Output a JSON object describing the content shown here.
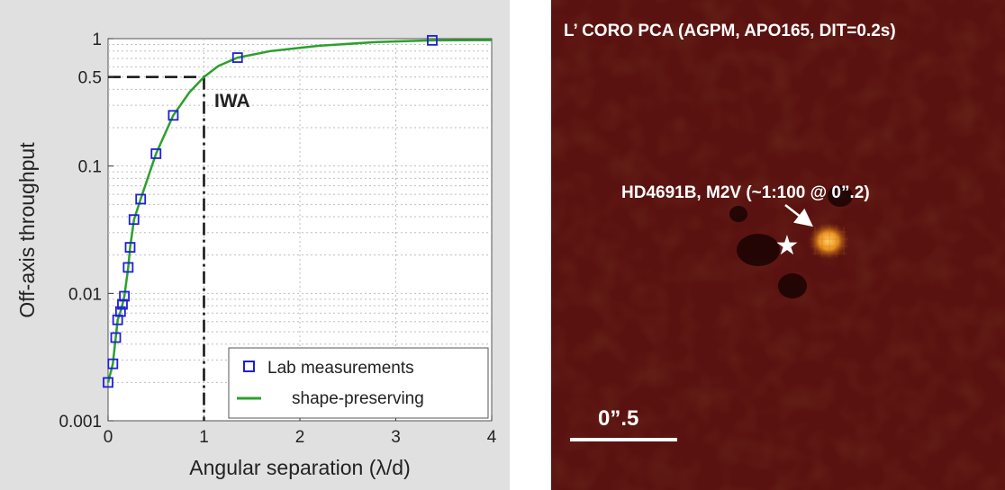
{
  "colors": {
    "panel_bg": "#e0e0e0",
    "plot_bg": "#ffffff",
    "grid": "#bdbdbd",
    "curve": "#2ca02c",
    "marker": "#1f1fd6",
    "image_bg": "#5a1210",
    "companion": "#f0a020",
    "annotation_text": "#ffffff"
  },
  "chart_data": {
    "type": "scatter",
    "title": "",
    "xlabel": "Angular separation (λ/d)",
    "ylabel": "Off-axis throughput",
    "xlim": [
      0,
      4
    ],
    "ylim": [
      0.001,
      1
    ],
    "yscale": "log",
    "grid": true,
    "legend_position": "bottom-right",
    "x_ticks": [
      {
        "value": 0,
        "label": "0"
      },
      {
        "value": 1,
        "label": "1"
      },
      {
        "value": 2,
        "label": "2"
      },
      {
        "value": 3,
        "label": "3"
      },
      {
        "value": 4,
        "label": "4"
      }
    ],
    "y_ticks": [
      {
        "value": 0.001,
        "label": "0.001"
      },
      {
        "value": 0.01,
        "label": "0.01"
      },
      {
        "value": 0.1,
        "label": "0.1"
      },
      {
        "value": 0.5,
        "label": "0.5"
      },
      {
        "value": 1,
        "label": "1"
      }
    ],
    "series": [
      {
        "name": "Lab measurements",
        "kind": "markers",
        "marker": "open-square",
        "color": "#1f1fd6",
        "x": [
          0.0,
          0.05,
          0.08,
          0.1,
          0.13,
          0.15,
          0.17,
          0.21,
          0.23,
          0.27,
          0.34,
          0.5,
          0.68,
          1.35,
          3.38
        ],
        "y": [
          0.002,
          0.0028,
          0.0045,
          0.0062,
          0.0072,
          0.0082,
          0.0095,
          0.016,
          0.023,
          0.038,
          0.055,
          0.125,
          0.25,
          0.71,
          0.97
        ]
      },
      {
        "name": "shape-preserving",
        "kind": "line",
        "color": "#2ca02c",
        "x": [
          0.0,
          0.05,
          0.08,
          0.1,
          0.13,
          0.15,
          0.17,
          0.21,
          0.23,
          0.27,
          0.34,
          0.5,
          0.68,
          0.85,
          1.0,
          1.15,
          1.35,
          1.7,
          2.2,
          2.8,
          3.38,
          4.0
        ],
        "y": [
          0.002,
          0.0028,
          0.0045,
          0.0062,
          0.0072,
          0.0082,
          0.0095,
          0.016,
          0.023,
          0.038,
          0.055,
          0.125,
          0.25,
          0.38,
          0.5,
          0.61,
          0.71,
          0.8,
          0.88,
          0.94,
          0.97,
          0.975
        ]
      }
    ],
    "annotations": [
      {
        "text": "IWA",
        "x": 1.0,
        "y": 0.5,
        "style": "dashed crosshair to x=1, y=0.5"
      }
    ]
  },
  "image_panel": {
    "title": "L’ CORO PCA (AGPM, APO165, DIT=0.2s)",
    "companion_label": "HD4691B, M2V (~1:100 @ 0”.2)",
    "scale_label": "0”.5",
    "star_symbol": "★"
  }
}
